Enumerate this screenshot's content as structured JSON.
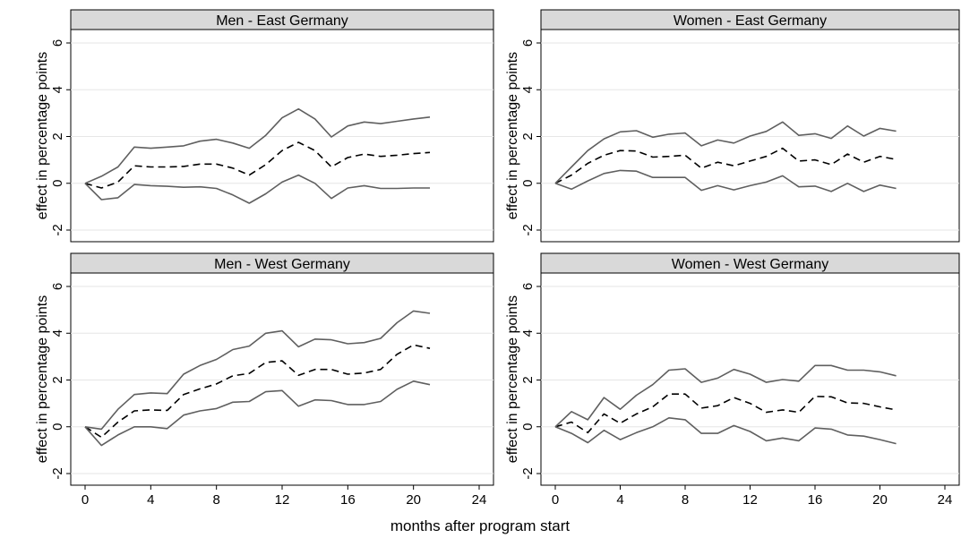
{
  "chart_data": [
    {
      "type": "line",
      "title": "Men - East Germany",
      "ylabel": "effect in percentage points",
      "xlim": [
        0,
        24
      ],
      "ylim": [
        -2,
        6
      ],
      "xticks": [
        0,
        4,
        8,
        12,
        16,
        20,
        24
      ],
      "yticks": [
        -2,
        0,
        2,
        4,
        6
      ],
      "series": [
        {
          "style": "dashed",
          "x": [
            0,
            1,
            2,
            3,
            4,
            5,
            6,
            7,
            8,
            9,
            10,
            11,
            12,
            13,
            14,
            15,
            16,
            17,
            18,
            19,
            20,
            21
          ],
          "values": [
            0,
            -0.2,
            0.05,
            0.75,
            0.7,
            0.7,
            0.72,
            0.82,
            0.82,
            0.65,
            0.35,
            0.8,
            1.4,
            1.75,
            1.4,
            0.7,
            1.1,
            1.25,
            1.15,
            1.2,
            1.27,
            1.32
          ]
        },
        {
          "style": "solid",
          "x": [
            0,
            1,
            2,
            3,
            4,
            5,
            6,
            7,
            8,
            9,
            10,
            11,
            12,
            13,
            14,
            15,
            16,
            17,
            18,
            19,
            20,
            21
          ],
          "values": [
            0,
            0.3,
            0.7,
            1.55,
            1.5,
            1.55,
            1.6,
            1.8,
            1.88,
            1.72,
            1.5,
            2.05,
            2.8,
            3.18,
            2.75,
            1.98,
            2.45,
            2.62,
            2.55,
            2.65,
            2.75,
            2.83
          ]
        },
        {
          "style": "solid",
          "x": [
            0,
            1,
            2,
            3,
            4,
            5,
            6,
            7,
            8,
            9,
            10,
            11,
            12,
            13,
            14,
            15,
            16,
            17,
            18,
            19,
            20,
            21
          ],
          "values": [
            0,
            -0.7,
            -0.62,
            -0.05,
            -0.1,
            -0.13,
            -0.17,
            -0.15,
            -0.22,
            -0.5,
            -0.85,
            -0.45,
            0.05,
            0.35,
            0.0,
            -0.65,
            -0.2,
            -0.1,
            -0.22,
            -0.22,
            -0.2,
            -0.2
          ]
        }
      ]
    },
    {
      "type": "line",
      "title": "Women - East Germany",
      "ylabel": "effect in percentage points",
      "xlim": [
        0,
        24
      ],
      "ylim": [
        -2,
        6
      ],
      "xticks": [
        0,
        4,
        8,
        12,
        16,
        20,
        24
      ],
      "yticks": [
        -2,
        0,
        2,
        4,
        6
      ],
      "series": [
        {
          "style": "dashed",
          "x": [
            0,
            1,
            2,
            3,
            4,
            5,
            6,
            7,
            8,
            9,
            10,
            11,
            12,
            13,
            14,
            15,
            16,
            17,
            18,
            19,
            20,
            21
          ],
          "values": [
            0,
            0.35,
            0.85,
            1.2,
            1.4,
            1.38,
            1.12,
            1.15,
            1.2,
            0.65,
            0.9,
            0.75,
            0.95,
            1.15,
            1.5,
            0.95,
            1.0,
            0.8,
            1.25,
            0.9,
            1.15,
            1.02
          ]
        },
        {
          "style": "solid",
          "x": [
            0,
            1,
            2,
            3,
            4,
            5,
            6,
            7,
            8,
            9,
            10,
            11,
            12,
            13,
            14,
            15,
            16,
            17,
            18,
            19,
            20,
            21
          ],
          "values": [
            0,
            0.7,
            1.4,
            1.9,
            2.2,
            2.25,
            1.97,
            2.1,
            2.15,
            1.6,
            1.85,
            1.72,
            2.02,
            2.22,
            2.62,
            2.05,
            2.12,
            1.92,
            2.45,
            2.02,
            2.35,
            2.23
          ]
        },
        {
          "style": "solid",
          "x": [
            0,
            1,
            2,
            3,
            4,
            5,
            6,
            7,
            8,
            9,
            10,
            11,
            12,
            13,
            14,
            15,
            16,
            17,
            18,
            19,
            20,
            21
          ],
          "values": [
            0,
            -0.25,
            0.1,
            0.42,
            0.55,
            0.52,
            0.25,
            0.25,
            0.25,
            -0.3,
            -0.1,
            -0.28,
            -0.1,
            0.05,
            0.32,
            -0.15,
            -0.12,
            -0.35,
            0.0,
            -0.35,
            -0.08,
            -0.22
          ]
        }
      ]
    },
    {
      "type": "line",
      "title": "Men - West Germany",
      "ylabel": "effect in percentage points",
      "xlim": [
        0,
        24
      ],
      "ylim": [
        -2,
        6
      ],
      "xticks": [
        0,
        4,
        8,
        12,
        16,
        20,
        24
      ],
      "yticks": [
        -2,
        0,
        2,
        4,
        6
      ],
      "series": [
        {
          "style": "dashed",
          "x": [
            0,
            1,
            2,
            3,
            4,
            5,
            6,
            7,
            8,
            9,
            10,
            11,
            12,
            13,
            14,
            15,
            16,
            17,
            18,
            19,
            20,
            21
          ],
          "values": [
            0,
            -0.45,
            0.2,
            0.68,
            0.72,
            0.7,
            1.38,
            1.62,
            1.83,
            2.18,
            2.28,
            2.75,
            2.82,
            2.2,
            2.45,
            2.45,
            2.25,
            2.3,
            2.45,
            3.1,
            3.5,
            3.35
          ]
        },
        {
          "style": "solid",
          "x": [
            0,
            1,
            2,
            3,
            4,
            5,
            6,
            7,
            8,
            9,
            10,
            11,
            12,
            13,
            14,
            15,
            16,
            17,
            18,
            19,
            20,
            21
          ],
          "values": [
            0,
            -0.1,
            0.75,
            1.38,
            1.45,
            1.42,
            2.25,
            2.62,
            2.88,
            3.3,
            3.45,
            4.0,
            4.1,
            3.42,
            3.75,
            3.72,
            3.55,
            3.6,
            3.78,
            4.45,
            4.95,
            4.85
          ]
        },
        {
          "style": "solid",
          "x": [
            0,
            1,
            2,
            3,
            4,
            5,
            6,
            7,
            8,
            9,
            10,
            11,
            12,
            13,
            14,
            15,
            16,
            17,
            18,
            19,
            20,
            21
          ],
          "values": [
            0,
            -0.8,
            -0.35,
            0.0,
            0.0,
            -0.08,
            0.5,
            0.68,
            0.78,
            1.05,
            1.08,
            1.5,
            1.55,
            0.88,
            1.15,
            1.12,
            0.95,
            0.95,
            1.08,
            1.6,
            1.95,
            1.8
          ]
        }
      ]
    },
    {
      "type": "line",
      "title": "Women - West Germany",
      "ylabel": "effect in percentage points",
      "xlim": [
        0,
        24
      ],
      "ylim": [
        -2,
        6
      ],
      "xticks": [
        0,
        4,
        8,
        12,
        16,
        20,
        24
      ],
      "yticks": [
        -2,
        0,
        2,
        4,
        6
      ],
      "series": [
        {
          "style": "dashed",
          "x": [
            0,
            1,
            2,
            3,
            4,
            5,
            6,
            7,
            8,
            9,
            10,
            11,
            12,
            13,
            14,
            15,
            16,
            17,
            18,
            19,
            20,
            21
          ],
          "values": [
            0,
            0.2,
            -0.25,
            0.55,
            0.15,
            0.55,
            0.85,
            1.4,
            1.4,
            0.8,
            0.9,
            1.25,
            1.0,
            0.62,
            0.72,
            0.62,
            1.3,
            1.28,
            1.02,
            1.0,
            0.85,
            0.72
          ]
        },
        {
          "style": "solid",
          "x": [
            0,
            1,
            2,
            3,
            4,
            5,
            6,
            7,
            8,
            9,
            10,
            11,
            12,
            13,
            14,
            15,
            16,
            17,
            18,
            19,
            20,
            21
          ],
          "values": [
            0,
            0.65,
            0.3,
            1.25,
            0.75,
            1.35,
            1.8,
            2.42,
            2.48,
            1.9,
            2.08,
            2.45,
            2.25,
            1.9,
            2.02,
            1.95,
            2.62,
            2.62,
            2.42,
            2.42,
            2.35,
            2.18
          ]
        },
        {
          "style": "solid",
          "x": [
            0,
            1,
            2,
            3,
            4,
            5,
            6,
            7,
            8,
            9,
            10,
            11,
            12,
            13,
            14,
            15,
            16,
            17,
            18,
            19,
            20,
            21
          ],
          "values": [
            0,
            -0.28,
            -0.68,
            -0.15,
            -0.55,
            -0.25,
            0.0,
            0.38,
            0.3,
            -0.28,
            -0.28,
            0.05,
            -0.2,
            -0.6,
            -0.48,
            -0.6,
            -0.05,
            -0.1,
            -0.35,
            -0.4,
            -0.55,
            -0.72
          ]
        }
      ]
    }
  ],
  "figure": {
    "xlabel": "months after program start"
  }
}
